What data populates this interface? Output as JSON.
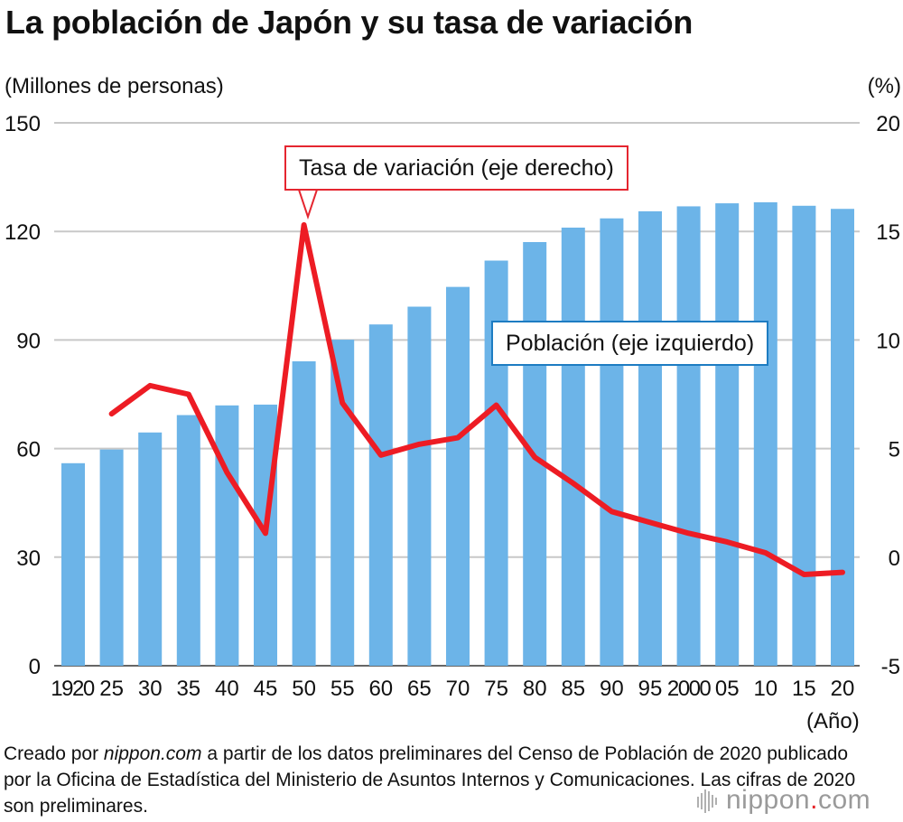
{
  "title": "La población de Japón y su tasa de variación",
  "chart_data": {
    "type": "bar+line",
    "categories": [
      "1920",
      "25",
      "30",
      "35",
      "40",
      "45",
      "50",
      "55",
      "60",
      "65",
      "70",
      "75",
      "80",
      "85",
      "90",
      "95",
      "2000",
      "05",
      "10",
      "15",
      "20"
    ],
    "x_unit_label": "(Año)",
    "y_left": {
      "label": "(Millones de personas)",
      "lim": [
        0,
        150
      ],
      "ticks": [
        0,
        30,
        60,
        90,
        120,
        150
      ]
    },
    "y_right": {
      "label": "(%)",
      "lim": [
        -5,
        20
      ],
      "ticks": [
        -5,
        0,
        5,
        10,
        15,
        20
      ]
    },
    "grid": true,
    "series": [
      {
        "name": "Población (eje izquierdo)",
        "kind": "bar",
        "axis": "left",
        "color": "#6cb4e8",
        "values": [
          55.96,
          59.74,
          64.45,
          69.25,
          71.93,
          72.15,
          84.11,
          90.08,
          94.3,
          99.21,
          104.67,
          111.94,
          117.06,
          121.05,
          123.61,
          125.57,
          126.93,
          127.77,
          128.06,
          127.09,
          126.23
        ]
      },
      {
        "name": "Tasa de variación (eje derecho)",
        "kind": "line",
        "axis": "right",
        "color": "#ed1c24",
        "values": [
          null,
          6.6,
          7.9,
          7.5,
          3.9,
          1.1,
          15.3,
          7.1,
          4.7,
          5.2,
          5.5,
          7.0,
          4.6,
          3.4,
          2.1,
          1.6,
          1.1,
          0.7,
          0.2,
          -0.8,
          -0.7
        ]
      }
    ]
  },
  "callouts": {
    "rate": "Tasa de variación (eje derecho)",
    "population": "Población (eje izquierdo)"
  },
  "caption": {
    "prefix": "Creado por ",
    "source": "nippon.com",
    "rest": " a partir de los datos preliminares del Censo de Población de 2020 publicado por la Oficina de Estadística del Ministerio de Asuntos Internos y Comunicaciones. Las cifras de 2020 son preliminares."
  },
  "logo": {
    "text": "nippon",
    "suffix": "com"
  }
}
